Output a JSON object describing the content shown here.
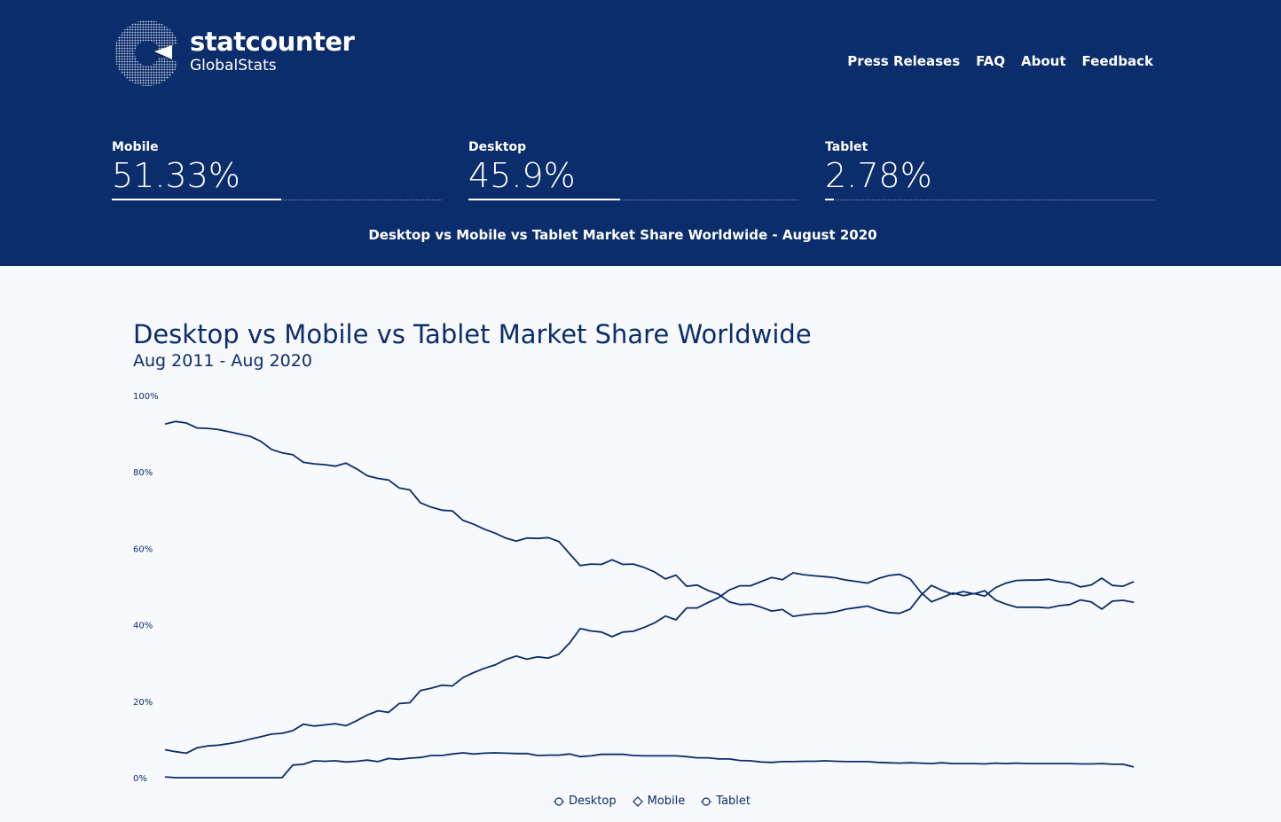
{
  "brand": {
    "name": "statcounter",
    "subtitle": "GlobalStats"
  },
  "nav": [
    "Press Releases",
    "FAQ",
    "About",
    "Feedback"
  ],
  "stats": [
    {
      "label": "Mobile",
      "value": "51.33%",
      "share": 51.33
    },
    {
      "label": "Desktop",
      "value": "45.9%",
      "share": 45.9
    },
    {
      "label": "Tablet",
      "value": "2.78%",
      "share": 2.78
    }
  ],
  "page_title": "Desktop vs Mobile vs Tablet Market Share Worldwide - August 2020",
  "colors": {
    "header_bg": "#0b2d6b",
    "line": "#0b2d6b",
    "page_bg": "#f8f9fc"
  },
  "chart_data": {
    "type": "line",
    "title": "Desktop vs Mobile vs Tablet Market Share Worldwide",
    "subtitle": "Aug 2011 - Aug 2020",
    "ylim": [
      0,
      100
    ],
    "yticks": [
      "0%",
      "20%",
      "40%",
      "60%",
      "80%",
      "100%"
    ],
    "x_start": "Aug 2011",
    "x_end": "Aug 2020",
    "legend_position": "bottom-center",
    "series": [
      {
        "name": "Desktop",
        "values": [
          92.5,
          93.2,
          92.8,
          91.5,
          91.4,
          91.1,
          90.5,
          89.9,
          89.3,
          88.0,
          85.9,
          85.0,
          84.5,
          82.5,
          82.1,
          81.9,
          81.5,
          82.3,
          80.8,
          79.0,
          78.3,
          77.9,
          75.8,
          75.3,
          71.9,
          70.8,
          70.0,
          69.8,
          67.3,
          66.3,
          65.0,
          64.0,
          62.7,
          61.9,
          62.7,
          62.6,
          62.8,
          61.8,
          58.6,
          55.5,
          55.9,
          55.8,
          57.0,
          55.8,
          55.9,
          55.0,
          53.8,
          52.0,
          53.0,
          50.1,
          50.4,
          49.0,
          48.0,
          46.0,
          45.3,
          45.4,
          44.6,
          43.6,
          44.0,
          42.2,
          42.6,
          42.9,
          43.0,
          43.4,
          44.1,
          44.5,
          44.9,
          43.9,
          43.2,
          43.0,
          44.1,
          47.7,
          50.3,
          49.0,
          48.0,
          48.7,
          48.1,
          48.9,
          46.5,
          45.4,
          44.6,
          44.6,
          44.6,
          44.4,
          45.0,
          45.3,
          46.5,
          46.0,
          44.1,
          46.2,
          46.4,
          45.9
        ],
        "legend": "Desktop"
      },
      {
        "name": "Mobile",
        "values": [
          7.3,
          6.8,
          6.4,
          7.8,
          8.3,
          8.5,
          8.9,
          9.4,
          10.1,
          10.7,
          11.4,
          11.6,
          12.3,
          14.0,
          13.5,
          13.8,
          14.1,
          13.6,
          14.9,
          16.4,
          17.5,
          17.1,
          19.4,
          19.6,
          22.8,
          23.4,
          24.2,
          24.0,
          26.2,
          27.5,
          28.6,
          29.5,
          30.9,
          31.8,
          31.0,
          31.6,
          31.3,
          32.3,
          35.2,
          39.0,
          38.4,
          38.1,
          36.9,
          38.1,
          38.3,
          39.3,
          40.5,
          42.3,
          41.3,
          44.4,
          44.4,
          45.8,
          47.1,
          49.1,
          50.2,
          50.2,
          51.3,
          52.4,
          51.8,
          53.6,
          53.1,
          52.8,
          52.6,
          52.3,
          51.7,
          51.3,
          50.9,
          52.1,
          52.9,
          53.2,
          52.0,
          48.5,
          46.0,
          47.1,
          48.3,
          47.6,
          48.2,
          47.5,
          49.7,
          50.9,
          51.6,
          51.7,
          51.7,
          51.9,
          51.3,
          51.0,
          49.9,
          50.4,
          52.2,
          50.3,
          50.1,
          51.3
        ],
        "legend": "Mobile"
      },
      {
        "name": "Tablet",
        "values": [
          0.2,
          0.0,
          0.0,
          0.0,
          0.0,
          0.0,
          0.0,
          0.0,
          0.0,
          0.0,
          0.0,
          0.0,
          3.3,
          3.5,
          4.4,
          4.3,
          4.4,
          4.1,
          4.3,
          4.6,
          4.2,
          5.0,
          4.8,
          5.1,
          5.3,
          5.8,
          5.8,
          6.2,
          6.5,
          6.2,
          6.4,
          6.5,
          6.4,
          6.3,
          6.3,
          5.8,
          5.9,
          5.9,
          6.2,
          5.5,
          5.7,
          6.1,
          6.1,
          6.1,
          5.8,
          5.7,
          5.7,
          5.7,
          5.7,
          5.5,
          5.2,
          5.2,
          4.9,
          4.9,
          4.5,
          4.4,
          4.1,
          4.0,
          4.2,
          4.2,
          4.3,
          4.3,
          4.4,
          4.3,
          4.2,
          4.2,
          4.2,
          4.0,
          3.9,
          3.8,
          3.9,
          3.8,
          3.7,
          3.9,
          3.7,
          3.7,
          3.7,
          3.6,
          3.8,
          3.7,
          3.8,
          3.7,
          3.7,
          3.7,
          3.7,
          3.7,
          3.6,
          3.6,
          3.7,
          3.5,
          3.5,
          2.8
        ],
        "legend": "Tablet"
      }
    ]
  }
}
